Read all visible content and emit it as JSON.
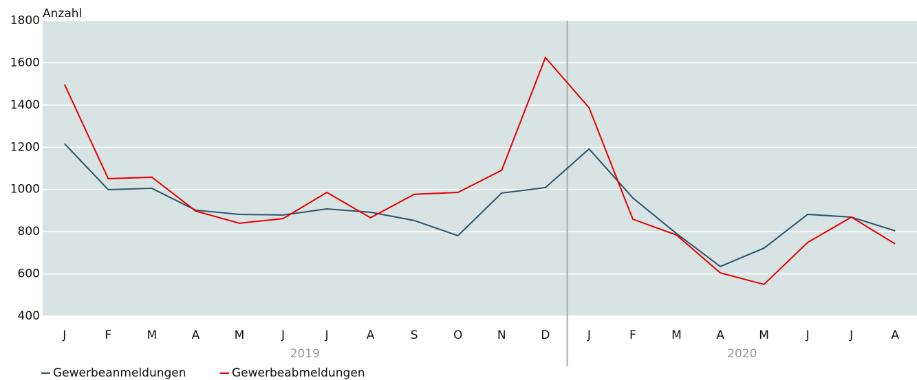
{
  "chart_data": {
    "type": "line",
    "y_label": "Anzahl",
    "categories": [
      "J",
      "F",
      "M",
      "A",
      "M",
      "J",
      "J",
      "A",
      "S",
      "O",
      "N",
      "D",
      "J",
      "F",
      "M",
      "A",
      "M",
      "J",
      "J",
      "A"
    ],
    "groups": [
      {
        "label": "2019",
        "months": 12
      },
      {
        "label": "2020",
        "months": 8
      }
    ],
    "series": [
      {
        "name": "Gewerbeanmeldungen",
        "color": "#2d5368",
        "values": [
          1217,
          999,
          1005,
          902,
          882,
          879,
          908,
          892,
          853,
          781,
          983,
          1009,
          1192,
          960,
          791,
          635,
          722,
          882,
          869,
          804
        ]
      },
      {
        "name": "Gewerbeabmeldungen",
        "color": "#e60000",
        "values": [
          1498,
          1051,
          1058,
          898,
          840,
          862,
          986,
          866,
          977,
          986,
          1091,
          1625,
          1387,
          859,
          784,
          605,
          550,
          749,
          869,
          742
        ]
      }
    ],
    "ylim": [
      400,
      1800
    ],
    "yticks": [
      400,
      600,
      800,
      1000,
      1200,
      1400,
      1600,
      1800
    ],
    "grid": true
  }
}
